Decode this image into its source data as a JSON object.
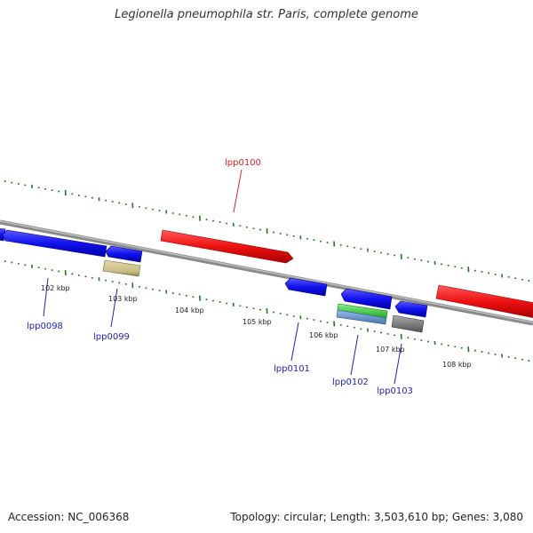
{
  "title": "Legionella pneumophila str. Paris, complete genome",
  "footer": {
    "accession": "Accession: NC_006368",
    "summary": "Topology: circular; Length: 3,503,610 bp; Genes: 3,080"
  },
  "colors": {
    "backbone": "#8a8a8a",
    "ticks": "#1f7a1f",
    "forward_gene": "#ee1111",
    "reverse_gene": "#1111ee",
    "locus_forward": "#dd2222",
    "locus_reverse": "#2222bb",
    "pseudo": "#c8bd82",
    "rna_green": "#33cc33",
    "rna_blue": "#6699cc",
    "other_gray": "#777777"
  },
  "kbp_labels": [
    "102 kbp",
    "103 kbp",
    "104 kbp",
    "105 kbp",
    "106 kbp",
    "107 kbp",
    "108 kbp"
  ],
  "loci": {
    "lpp0098": "lpp0098",
    "lpp0099": "lpp0099",
    "lpp0100": "lpp0100",
    "lpp0101": "lpp0101",
    "lpp0102": "lpp0102",
    "lpp0103": "lpp0103"
  }
}
